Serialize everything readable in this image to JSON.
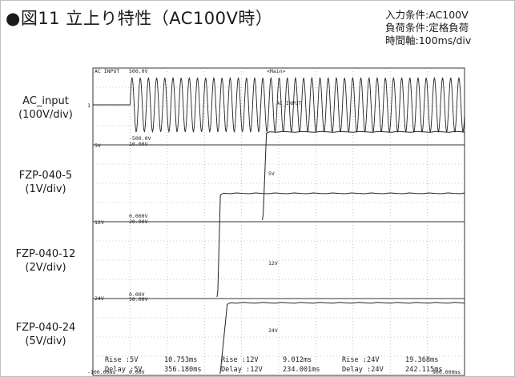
{
  "title": "●図11 立上り特性（AC100V時）",
  "conditions": [
    "入力条件:AC100V",
    "負荷条件:定格負荷",
    "時間軸:100ms/div"
  ],
  "scope": {
    "header_ch": "AC INPUT",
    "header_scale": "500.0V",
    "header_mode": "<Main>",
    "time_div_ms": 100,
    "divisions": 10
  },
  "channels": [
    {
      "name": "AC_input",
      "scale": "(100V/div)",
      "tag": "AC_INPUT",
      "top_readout": "",
      "bottom_readout": "-500.0V",
      "left_marker": "5V"
    },
    {
      "name": "FZP-040-5",
      "scale": "(1V/div)",
      "tag": "5V",
      "top_readout": "10.00V",
      "bottom_readout": "0.000V",
      "left_marker": "12V"
    },
    {
      "name": "FZP-040-12",
      "scale": "(2V/div)",
      "tag": "12V",
      "top_readout": "20.00V",
      "bottom_readout": "0.00V",
      "left_marker": "24V"
    },
    {
      "name": "FZP-040-24",
      "scale": "(5V/div)",
      "tag": "24V",
      "top_readout": "50.00V",
      "bottom_readout": "0.00V",
      "left_marker": ""
    }
  ],
  "measurements": [
    {
      "rise_label": "Rise :5V",
      "rise_value": "10.753ms",
      "delay_label": "Delay :5V",
      "delay_value": "356.180ms"
    },
    {
      "rise_label": "Rise :12V",
      "rise_value": "9.012ms",
      "delay_label": "Delay :12V",
      "delay_value": "234.001ms"
    },
    {
      "rise_label": "Rise :24V",
      "rise_value": "19.368ms",
      "delay_label": "Delay :24V",
      "delay_value": "242.115ms"
    }
  ],
  "footer": {
    "left_time": "-100.00ms",
    "right_time": "900.000ms"
  },
  "chart_data": {
    "type": "line",
    "title": "●図11 立上り特性（AC100V時）",
    "xlabel": "",
    "ylabel": "",
    "x_range_ms": [
      -100,
      900
    ],
    "series": [
      {
        "name": "AC_input",
        "ac_start_ms": 0,
        "amplitude_divs": 1.4
      },
      {
        "name": "FZP-040-5",
        "delay_ms": 356.18,
        "rise_ms": 10.753,
        "level_divs": 4.6
      },
      {
        "name": "FZP-040-12",
        "delay_ms": 234.001,
        "rise_ms": 9.012,
        "level_divs": 5.4
      },
      {
        "name": "FZP-040-24",
        "delay_ms": 242.115,
        "rise_ms": 19.368,
        "level_divs": 3.7
      }
    ]
  }
}
